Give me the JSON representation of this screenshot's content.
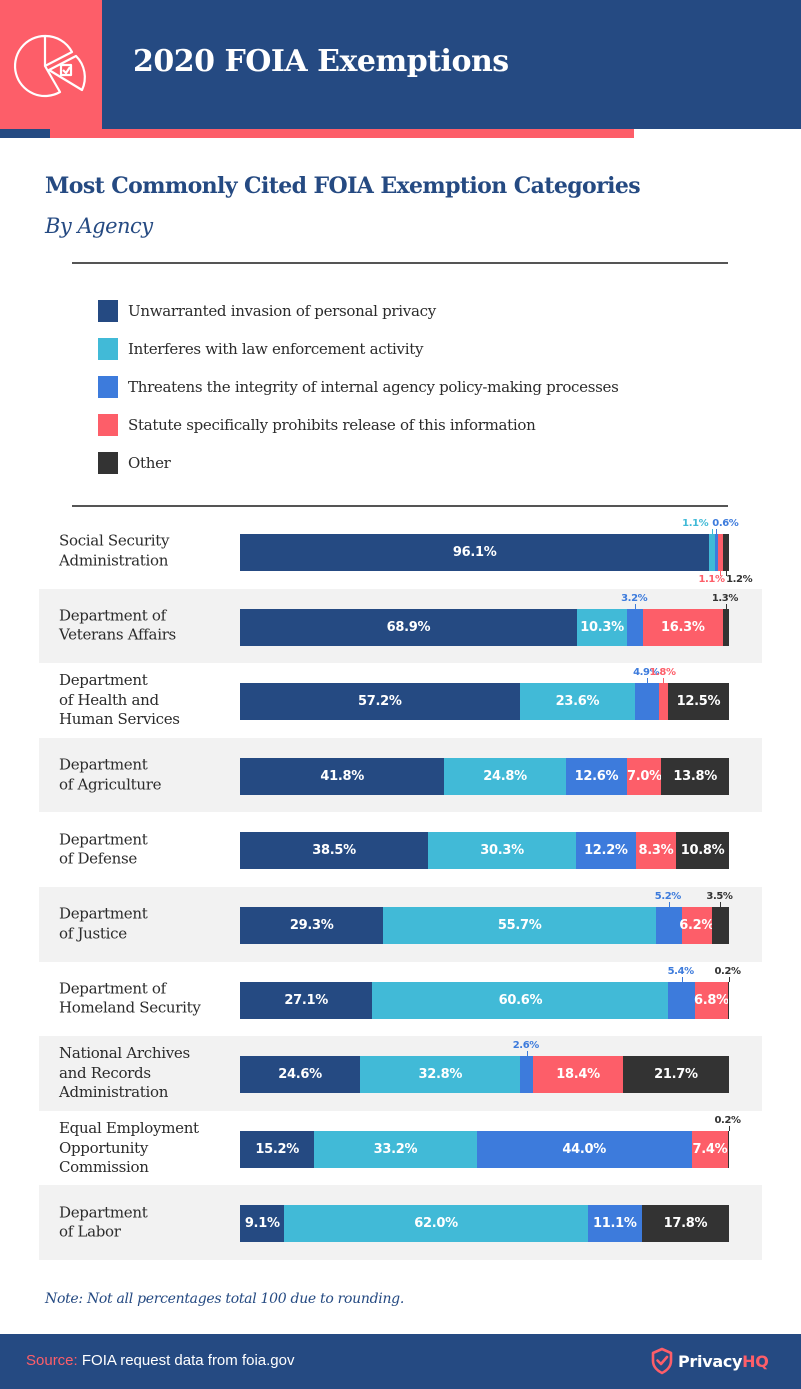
{
  "header": {
    "title": "2020 FOIA Exemptions",
    "icon": "pie-chart-checkbox-icon"
  },
  "subtitle": "Most Commonly Cited FOIA Exemption Categories",
  "subtitle2": "By Agency",
  "colors": {
    "brand_navy": "#254a82",
    "brand_red": "#fd5e69",
    "privacy": "#254a82",
    "law_enforcement": "#41bad7",
    "policy": "#3d7bdc",
    "statute": "#fd5e69",
    "other": "#333333"
  },
  "note": "Note: Not all percentages total 100 due to rounding.",
  "footer": {
    "source_key": "Source:",
    "source_text": " FOIA request data from foia.gov",
    "logo_main": "Privacy",
    "logo_accent": "HQ",
    "logo_icon": "shield-check-icon"
  },
  "chart_data": {
    "type": "bar",
    "orientation": "horizontal",
    "stacked": true,
    "title": "Most Commonly Cited FOIA Exemption Categories",
    "subtitle": "By Agency",
    "xlabel": "",
    "ylabel": "",
    "unit": "%",
    "xlim": [
      0,
      100
    ],
    "grid": false,
    "legend_position": "top",
    "legend": [
      "Unwarranted invasion of personal privacy",
      "Interferes with law enforcement activity",
      "Threatens the integrity of internal agency policy-making processes",
      "Statute specifically prohibits release of this information",
      "Other"
    ],
    "categories": [
      "Social Security\nAdministration",
      "Department of\nVeterans Affairs",
      "Department\nof Health and\nHuman Services",
      "Department\nof Agriculture",
      "Department\nof Defense",
      "Department\nof Justice",
      "Department of\nHomeland Security",
      "National Archives\nand Records\nAdministration",
      "Equal Employment\nOpportunity\nCommission",
      "Department\nof Labor"
    ],
    "series": [
      {
        "name": "Unwarranted invasion of personal privacy",
        "key": "privacy",
        "values": [
          96.1,
          68.9,
          57.2,
          41.8,
          38.5,
          29.3,
          27.1,
          24.6,
          15.2,
          9.1
        ]
      },
      {
        "name": "Interferes with law enforcement activity",
        "key": "law_enforcement",
        "values": [
          1.1,
          10.3,
          23.6,
          24.8,
          30.3,
          55.7,
          60.6,
          32.8,
          33.2,
          62.0
        ]
      },
      {
        "name": "Threatens the integrity of internal agency policy-making processes",
        "key": "policy",
        "values": [
          0.6,
          3.2,
          4.9,
          12.6,
          12.2,
          5.2,
          5.4,
          2.6,
          44.0,
          11.1
        ]
      },
      {
        "name": "Statute specifically prohibits release of this information",
        "key": "statute",
        "values": [
          1.1,
          16.3,
          1.8,
          7.0,
          8.3,
          6.2,
          6.8,
          18.4,
          7.4,
          0
        ]
      },
      {
        "name": "Other",
        "key": "other",
        "values": [
          1.2,
          1.3,
          12.5,
          13.8,
          10.8,
          3.5,
          0.2,
          21.7,
          0.2,
          17.8
        ]
      }
    ],
    "outside_labels": [
      [
        {
          "series": 1,
          "pos": "above"
        },
        {
          "series": 2,
          "pos": "above"
        },
        {
          "series": 3,
          "pos": "below"
        },
        {
          "series": 4,
          "pos": "below"
        }
      ],
      [
        {
          "series": 2,
          "pos": "above"
        },
        {
          "series": 4,
          "pos": "above"
        }
      ],
      [
        {
          "series": 2,
          "pos": "above"
        },
        {
          "series": 3,
          "pos": "above"
        }
      ],
      [],
      [],
      [
        {
          "series": 2,
          "pos": "above"
        },
        {
          "series": 4,
          "pos": "above"
        }
      ],
      [
        {
          "series": 2,
          "pos": "above"
        },
        {
          "series": 4,
          "pos": "above"
        }
      ],
      [
        {
          "series": 2,
          "pos": "above"
        }
      ],
      [
        {
          "series": 4,
          "pos": "above"
        }
      ],
      []
    ]
  }
}
